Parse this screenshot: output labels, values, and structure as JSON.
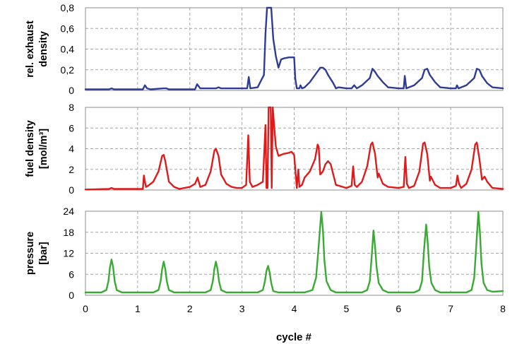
{
  "chart_data": [
    {
      "type": "line",
      "ylabel": [
        "rel. exhaust",
        "density"
      ],
      "ylim": [
        0,
        0.8
      ],
      "yticks": [
        "0",
        "0,2",
        "0,4",
        "0,6",
        "0,8"
      ],
      "xlim": [
        0,
        8
      ],
      "grid": true,
      "color": "#2e3c96",
      "series": [
        {
          "x": [
            0,
            0.45,
            0.5,
            0.55,
            1.1,
            1.14,
            1.18,
            1.25,
            1.5,
            1.55,
            1.6,
            2.1,
            2.14,
            2.2,
            2.5,
            2.55,
            2.6,
            3.1,
            3.13,
            3.16,
            3.3,
            3.42,
            3.45,
            3.48,
            3.52,
            3.56,
            3.6,
            3.65,
            3.7,
            3.75,
            3.8,
            3.9,
            4.0,
            4.02,
            4.05,
            4.1,
            4.12,
            4.15,
            4.2,
            4.3,
            4.4,
            4.5,
            4.55,
            4.6,
            4.65,
            4.75,
            4.8,
            4.85,
            5.0,
            5.1,
            5.15,
            5.2,
            5.3,
            5.45,
            5.5,
            5.55,
            5.6,
            5.7,
            5.8,
            6.0,
            6.1,
            6.12,
            6.15,
            6.2,
            6.3,
            6.45,
            6.5,
            6.55,
            6.6,
            6.7,
            6.8,
            7.0,
            7.1,
            7.12,
            7.15,
            7.2,
            7.3,
            7.45,
            7.5,
            7.55,
            7.6,
            7.7,
            7.8,
            8.0
          ],
          "y": [
            0.01,
            0.01,
            0.02,
            0.01,
            0.01,
            0.05,
            0.02,
            0.01,
            0.02,
            0.02,
            0.01,
            0.01,
            0.06,
            0.02,
            0.02,
            0.03,
            0.02,
            0.02,
            0.13,
            0.02,
            0.03,
            0.15,
            0.55,
            0.8,
            0.8,
            0.8,
            0.5,
            0.33,
            0.22,
            0.3,
            0.31,
            0.32,
            0.32,
            0.12,
            0.02,
            0.02,
            0.05,
            0.02,
            0.03,
            0.08,
            0.15,
            0.22,
            0.22,
            0.2,
            0.15,
            0.07,
            0.02,
            0.03,
            0.02,
            0.02,
            0.05,
            0.02,
            0.05,
            0.12,
            0.21,
            0.18,
            0.14,
            0.08,
            0.03,
            0.02,
            0.02,
            0.14,
            0.02,
            0.03,
            0.05,
            0.12,
            0.2,
            0.21,
            0.15,
            0.08,
            0.03,
            0.02,
            0.02,
            0.05,
            0.02,
            0.03,
            0.05,
            0.12,
            0.21,
            0.2,
            0.14,
            0.07,
            0.03,
            0.02
          ]
        }
      ]
    },
    {
      "type": "line",
      "ylabel": [
        "fuel density",
        "[mol/m³]"
      ],
      "ylim": [
        0,
        8
      ],
      "yticks": [
        "0",
        "2",
        "4",
        "6",
        "8"
      ],
      "xlim": [
        0,
        8
      ],
      "grid": true,
      "color": "#e01a1a",
      "series": [
        {
          "x": [
            0,
            0.45,
            0.5,
            0.55,
            1.1,
            1.12,
            1.14,
            1.16,
            1.2,
            1.3,
            1.4,
            1.47,
            1.5,
            1.53,
            1.6,
            1.7,
            1.8,
            2.0,
            2.1,
            2.15,
            2.2,
            2.3,
            2.4,
            2.47,
            2.5,
            2.55,
            2.6,
            2.7,
            2.8,
            2.9,
            3.0,
            3.08,
            3.12,
            3.15,
            3.2,
            3.3,
            3.4,
            3.45,
            3.47,
            3.49,
            3.51,
            3.53,
            3.55,
            3.57,
            3.59,
            3.62,
            3.65,
            3.7,
            3.8,
            3.9,
            3.95,
            4.0,
            4.05,
            4.08,
            4.1,
            4.15,
            4.2,
            4.3,
            4.4,
            4.45,
            4.47,
            4.5,
            4.55,
            4.6,
            4.65,
            4.7,
            4.75,
            4.8,
            5.0,
            5.1,
            5.13,
            5.16,
            5.2,
            5.3,
            5.4,
            5.47,
            5.5,
            5.55,
            5.6,
            5.62,
            5.7,
            5.8,
            6.0,
            6.1,
            6.13,
            6.16,
            6.2,
            6.3,
            6.4,
            6.47,
            6.5,
            6.55,
            6.6,
            6.62,
            6.7,
            6.8,
            7.0,
            7.1,
            7.13,
            7.16,
            7.2,
            7.3,
            7.4,
            7.47,
            7.5,
            7.55,
            7.6,
            7.65,
            7.7,
            7.8,
            8.0
          ],
          "y": [
            0.05,
            0.1,
            0.2,
            0.1,
            0.1,
            1.4,
            0.8,
            0.3,
            0.4,
            0.8,
            1.8,
            3.3,
            3.4,
            2.8,
            0.8,
            0.3,
            0.1,
            0.3,
            0.6,
            1.2,
            0.3,
            0.5,
            1.8,
            3.8,
            4.0,
            3.3,
            1.5,
            0.6,
            0.3,
            0.2,
            0.2,
            0.5,
            5.3,
            0.8,
            0.3,
            0.5,
            0.8,
            6.3,
            0.2,
            0.2,
            8.0,
            8.0,
            8.0,
            0.2,
            8.0,
            6.0,
            4.2,
            3.3,
            3.5,
            3.6,
            3.7,
            3.4,
            0.2,
            2.0,
            0.3,
            0.5,
            1.2,
            1.8,
            3.0,
            4.4,
            4.2,
            1.5,
            1.8,
            2.5,
            2.8,
            2.5,
            1.5,
            0.5,
            0.2,
            0.4,
            2.3,
            0.5,
            0.3,
            0.8,
            2.3,
            4.4,
            4.6,
            3.5,
            1.2,
            1.6,
            0.6,
            0.3,
            0.2,
            0.3,
            3.2,
            0.6,
            0.2,
            0.4,
            1.8,
            4.5,
            4.6,
            3.5,
            0.9,
            1.3,
            0.5,
            0.2,
            0.2,
            0.4,
            1.4,
            0.6,
            0.2,
            0.6,
            2.0,
            4.4,
            4.6,
            3.0,
            1.0,
            1.3,
            0.8,
            0.2,
            0.1
          ]
        }
      ]
    },
    {
      "type": "line",
      "ylabel": [
        "pressure",
        "[bar]"
      ],
      "ylim": [
        0,
        24
      ],
      "yticks": [
        "0",
        "6",
        "12",
        "18",
        "24"
      ],
      "xlabel": "cycle #",
      "xlim": [
        0,
        8
      ],
      "xticks": [
        "0",
        "1",
        "2",
        "3",
        "4",
        "5",
        "6",
        "7",
        "8"
      ],
      "grid": true,
      "color": "#3aaa35",
      "series": [
        {
          "x": [
            0,
            0.3,
            0.4,
            0.44,
            0.47,
            0.5,
            0.53,
            0.56,
            0.6,
            0.7,
            1.3,
            1.4,
            1.44,
            1.47,
            1.5,
            1.53,
            1.56,
            1.6,
            1.7,
            2.3,
            2.4,
            2.44,
            2.47,
            2.5,
            2.53,
            2.56,
            2.6,
            2.7,
            3.3,
            3.4,
            3.44,
            3.47,
            3.5,
            3.53,
            3.56,
            3.6,
            3.7,
            4.2,
            4.35,
            4.42,
            4.47,
            4.52,
            4.55,
            4.58,
            4.62,
            4.7,
            4.8,
            5.3,
            5.4,
            5.45,
            5.49,
            5.52,
            5.55,
            5.58,
            5.62,
            5.7,
            5.8,
            6.3,
            6.4,
            6.45,
            6.49,
            6.53,
            6.56,
            6.59,
            6.63,
            6.7,
            6.8,
            7.3,
            7.4,
            7.45,
            7.49,
            7.53,
            7.56,
            7.59,
            7.63,
            7.7,
            7.8,
            8.0
          ],
          "y": [
            0.8,
            0.8,
            1.5,
            4,
            8,
            10.2,
            8,
            4,
            1.5,
            0.8,
            0.8,
            1.5,
            4,
            7.5,
            9.6,
            7.5,
            4,
            1.5,
            0.8,
            0.8,
            1.5,
            4,
            7.5,
            9.6,
            7.5,
            4,
            1.5,
            0.8,
            0.8,
            1.5,
            4,
            7,
            8.4,
            6.5,
            3.5,
            1.2,
            0.8,
            0.8,
            1.5,
            5,
            14,
            23.8,
            19,
            10,
            4,
            1.5,
            0.8,
            0.8,
            1.5,
            4,
            12,
            18.5,
            14,
            8,
            3.5,
            1.5,
            0.8,
            0.8,
            1.5,
            4,
            13,
            20.2,
            15,
            8,
            3.5,
            1.5,
            0.8,
            0.8,
            1.5,
            5,
            14,
            23.8,
            18,
            9,
            3.5,
            1.5,
            1.0,
            1.2
          ]
        }
      ]
    }
  ]
}
